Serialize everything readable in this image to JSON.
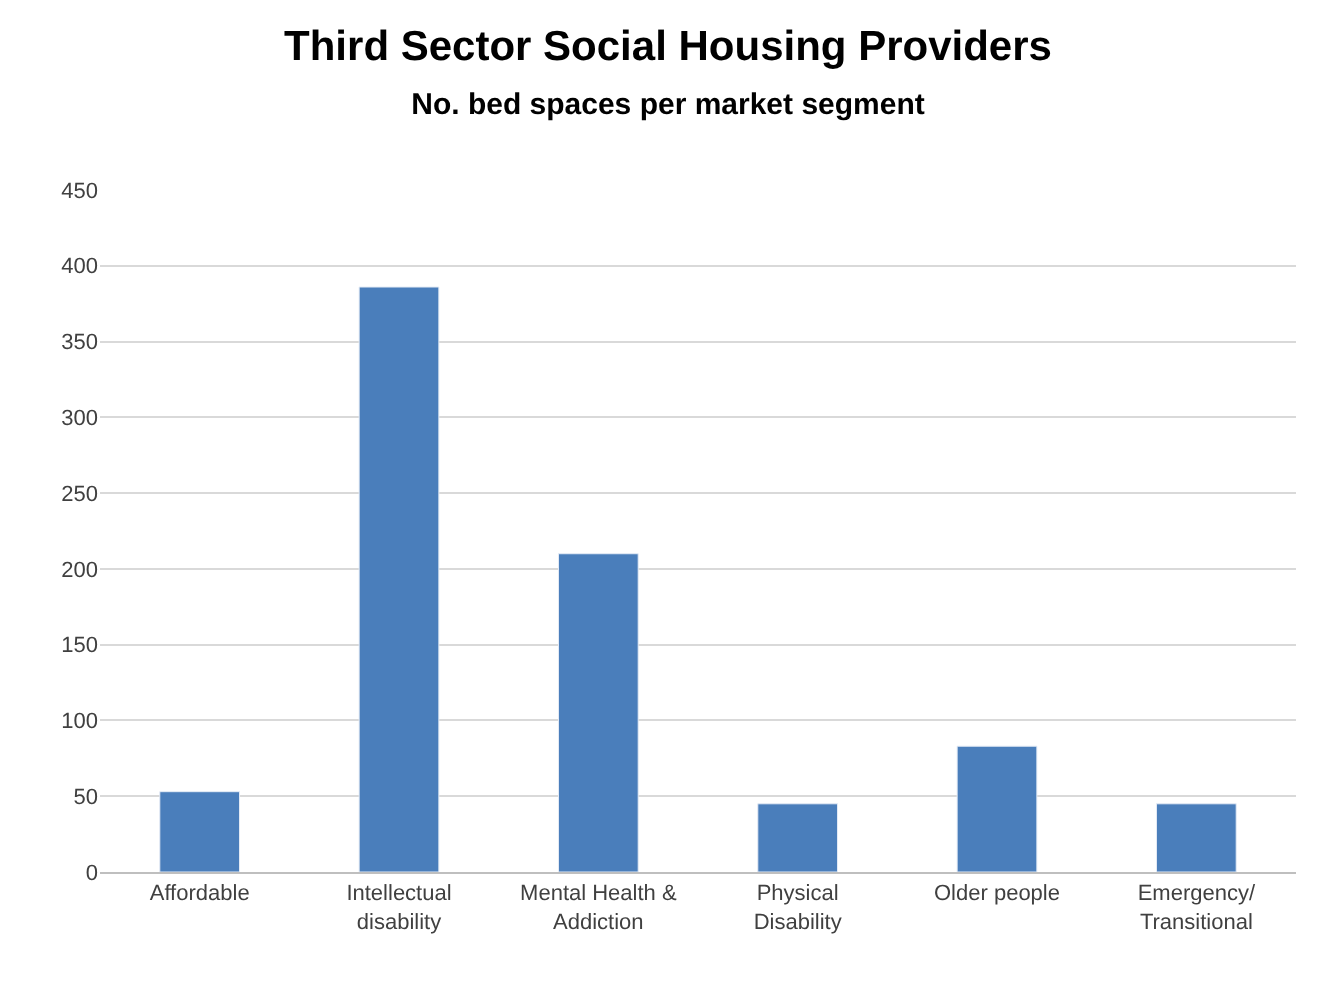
{
  "chart_data": {
    "type": "bar",
    "title": "Third Sector Social Housing Providers",
    "subtitle": "No. bed spaces per market segment",
    "categories": [
      "Affordable",
      "Intellectual\ndisability",
      "Mental Health &\nAddiction",
      "Physical\nDisability",
      "Older people",
      "Emergency/\nTransitional"
    ],
    "values": [
      53,
      386,
      210,
      45,
      83,
      45
    ],
    "color": "#4a7ebb",
    "ylim": [
      0,
      450
    ],
    "yticks": [
      0,
      50,
      100,
      150,
      200,
      250,
      300,
      350,
      400,
      450
    ],
    "grid": "y"
  }
}
